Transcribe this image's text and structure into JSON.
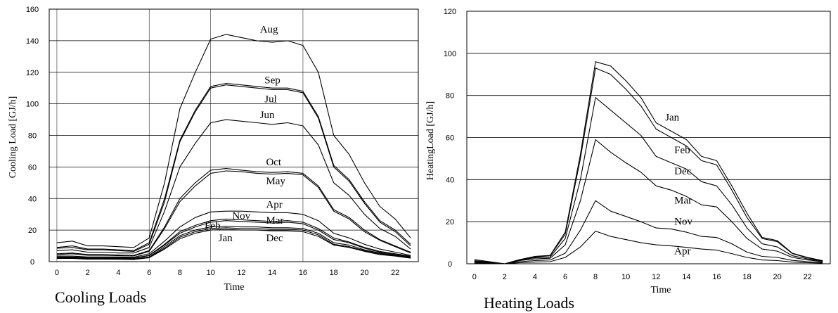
{
  "chart_data": [
    {
      "type": "line",
      "caption": "Cooling Loads",
      "xlabel": "Time",
      "ylabel": "Cooling Load [GJ/h]",
      "xlim": [
        -0.5,
        23.5
      ],
      "ylim": [
        0,
        160
      ],
      "xticks": [
        "0",
        "2",
        "4",
        "6",
        "8",
        "10",
        "12",
        "14",
        "16",
        "18",
        "20",
        "22"
      ],
      "yticks": [
        "0",
        "20",
        "40",
        "60",
        "80",
        "100",
        "120",
        "140",
        "160"
      ],
      "grid": "horizontal",
      "x": [
        0,
        1,
        2,
        3,
        4,
        5,
        6,
        7,
        8,
        9,
        10,
        11,
        12,
        13,
        14,
        15,
        16,
        17,
        18,
        19,
        20,
        21,
        22,
        23
      ],
      "series": [
        {
          "name": "Aug",
          "label_at": [
            13.2,
            145
          ],
          "values": [
            12,
            13,
            10,
            10,
            9.5,
            9,
            15,
            50,
            97,
            120,
            141,
            144,
            142,
            140,
            139,
            140,
            137,
            120,
            80,
            68,
            50,
            35,
            27,
            15
          ]
        },
        {
          "name": "Sep",
          "label_at": [
            13.5,
            113
          ],
          "values": [
            9,
            10,
            8,
            8,
            7.5,
            7,
            12,
            40,
            77,
            96,
            111,
            113,
            112,
            111,
            110,
            110,
            108,
            92,
            61,
            52,
            38,
            26,
            20,
            11
          ]
        },
        {
          "name": "Jul",
          "label_at": [
            13.5,
            101
          ],
          "values": [
            8.5,
            9,
            7.5,
            7.5,
            7,
            6.5,
            11,
            38,
            76,
            95,
            110,
            112,
            111,
            110,
            109,
            109,
            107,
            91,
            60,
            51,
            37,
            25,
            19,
            10
          ]
        },
        {
          "name": "Jun",
          "label_at": [
            13.2,
            91
          ],
          "values": [
            7,
            7.5,
            6,
            6,
            5.5,
            5.5,
            9,
            32,
            60,
            75,
            88,
            90,
            89,
            88,
            87,
            88,
            86,
            74,
            50,
            42,
            30,
            21,
            16,
            8
          ]
        },
        {
          "name": "Oct",
          "label_at": [
            13.6,
            61
          ],
          "values": [
            5,
            5.5,
            4.5,
            4.5,
            4.2,
            4,
            7,
            22,
            40,
            50,
            58,
            59,
            58,
            57,
            56.5,
            57,
            56,
            48,
            33,
            28,
            20,
            14,
            10,
            6
          ]
        },
        {
          "name": "May",
          "label_at": [
            13.6,
            49
          ],
          "values": [
            4.5,
            5,
            4,
            4,
            3.8,
            3.6,
            6.5,
            21,
            38,
            48,
            56,
            57.5,
            57,
            56,
            55.5,
            56,
            55,
            47,
            32,
            27,
            19,
            13.5,
            9.5,
            5.5
          ]
        },
        {
          "name": "Apr",
          "label_at": [
            13.6,
            34
          ],
          "values": [
            3.5,
            3.5,
            3,
            3,
            3,
            2.8,
            5,
            13,
            22,
            28,
            31.5,
            32,
            32,
            31.5,
            31,
            31,
            30,
            26,
            18,
            15,
            11,
            8,
            6,
            4
          ]
        },
        {
          "name": "Nov",
          "label_at": [
            11.4,
            27
          ],
          "values": [
            3,
            3,
            2.5,
            2.5,
            2.5,
            2.3,
            4,
            11,
            19,
            23,
            26,
            27,
            26.5,
            26,
            25.5,
            26,
            25,
            21,
            15,
            12.5,
            9,
            6.5,
            5,
            3.5
          ]
        },
        {
          "name": "Mar",
          "label_at": [
            13.6,
            24
          ],
          "values": [
            2.8,
            2.8,
            2.3,
            2.3,
            2.3,
            2.2,
            3.8,
            10.5,
            18,
            22,
            25,
            26,
            25.5,
            25,
            24.5,
            25,
            24,
            20,
            14,
            12,
            8.5,
            6,
            4.5,
            3.2
          ]
        },
        {
          "name": "Feb",
          "label_at": [
            9.6,
            21
          ],
          "values": [
            2.5,
            2.5,
            2,
            2,
            2,
            1.8,
            3,
            9.5,
            16.5,
            20,
            22,
            22.5,
            22,
            22,
            21.5,
            21.5,
            21,
            18,
            12,
            10.5,
            7.5,
            5.5,
            4,
            2.8
          ]
        },
        {
          "name": "Jan",
          "label_at": [
            10.5,
            13
          ],
          "values": [
            2,
            2,
            1.6,
            1.6,
            1.5,
            1.4,
            2.5,
            8,
            14.5,
            18,
            20,
            20.5,
            20,
            20,
            19.5,
            19.5,
            19,
            16,
            10.5,
            9,
            6.5,
            4.5,
            3.5,
            2.2
          ]
        },
        {
          "name": "Dec",
          "label_at": [
            13.6,
            13
          ],
          "values": [
            2.2,
            2.2,
            1.8,
            1.8,
            1.7,
            1.6,
            2.8,
            8.5,
            15.5,
            19,
            21,
            21.5,
            21,
            21,
            20.5,
            20.5,
            20,
            17,
            11,
            9.5,
            7,
            5,
            3.8,
            2.5
          ]
        }
      ]
    },
    {
      "type": "line",
      "caption": "Heating Loads",
      "xlabel": "Time",
      "ylabel": "HeatingLoad [GJ/h]",
      "xlim": [
        -0.5,
        23.5
      ],
      "ylim": [
        0,
        120
      ],
      "xticks": [
        "0",
        "2",
        "4",
        "6",
        "8",
        "10",
        "12",
        "14",
        "16",
        "18",
        "20",
        "22"
      ],
      "yticks": [
        "0",
        "20",
        "40",
        "60",
        "80",
        "100",
        "120"
      ],
      "grid": "horizontal",
      "x": [
        0,
        1,
        2,
        3,
        4,
        5,
        6,
        7,
        8,
        9,
        10,
        11,
        12,
        13,
        14,
        15,
        16,
        17,
        18,
        19,
        20,
        21,
        22,
        23
      ],
      "series": [
        {
          "name": "Jan",
          "label_at": [
            12.6,
            68
          ],
          "values": [
            2,
            1,
            0,
            2,
            3.5,
            4,
            15,
            52,
            96,
            94,
            87,
            79,
            67,
            63,
            59,
            51,
            49,
            37,
            24,
            12.5,
            11,
            5,
            3,
            1.5
          ]
        },
        {
          "name": "Feb",
          "label_at": [
            13.2,
            52.5
          ],
          "values": [
            1.5,
            0.8,
            0,
            2,
            3.2,
            3.8,
            14,
            50,
            93,
            90,
            83,
            75,
            64,
            60,
            56,
            49,
            47,
            35,
            22,
            12,
            10.5,
            4.8,
            2.8,
            1.4
          ]
        },
        {
          "name": "Dec",
          "label_at": [
            13.2,
            42.5
          ],
          "values": [
            1.2,
            0.7,
            0,
            1.8,
            2.8,
            3.2,
            12,
            40,
            79,
            73,
            67,
            61,
            51,
            48,
            45,
            39,
            37,
            28,
            17,
            9.5,
            8,
            3.8,
            2.3,
            1.2
          ]
        },
        {
          "name": "Mar",
          "label_at": [
            13.2,
            28.5
          ],
          "values": [
            1,
            0.5,
            0,
            1.5,
            2.3,
            2.6,
            9,
            30,
            59,
            53,
            48,
            43.5,
            37,
            35,
            32,
            28,
            27,
            20,
            12,
            7,
            6,
            3,
            1.8,
            1
          ]
        },
        {
          "name": "Nov",
          "label_at": [
            13.2,
            18.5
          ],
          "values": [
            0.6,
            0.3,
            0,
            1,
            1.5,
            1.8,
            5,
            16,
            30,
            25,
            22.5,
            20,
            17,
            16.5,
            15,
            13,
            12.5,
            9.5,
            5.5,
            3.5,
            3,
            1.6,
            1,
            0.6
          ]
        },
        {
          "name": "Apr",
          "label_at": [
            13.2,
            4.5
          ],
          "values": [
            0.3,
            0.2,
            0,
            0.5,
            0.8,
            1,
            3,
            8,
            15.5,
            13,
            11.5,
            10,
            9,
            8.5,
            7.8,
            7,
            6.5,
            4.8,
            3,
            1.8,
            1.5,
            0.8,
            0.5,
            0.3
          ]
        }
      ]
    }
  ]
}
